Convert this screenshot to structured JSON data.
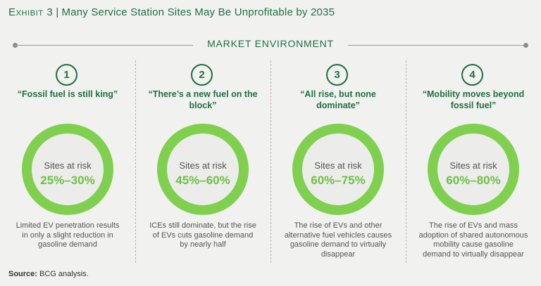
{
  "title": {
    "exhibit": "Exhibit 3",
    "separator": "|",
    "text": "Many Service Station Sites May Be Unprofitable by 2035"
  },
  "section_label": "MARKET ENVIRONMENT",
  "ring_color": "#7fd04f",
  "accent_color": "#1f6f43",
  "scenarios": [
    {
      "number": "1",
      "heading": "“Fossil fuel is still king”",
      "risk_label": "Sites at risk",
      "risk_value": "25%–30%",
      "description": "Limited EV penetration results in only a slight reduction in gasoline demand"
    },
    {
      "number": "2",
      "heading": "“There’s a new fuel on the block”",
      "risk_label": "Sites at risk",
      "risk_value": "45%–60%",
      "description": "ICEs still dominate, but the rise of EVs cuts gasoline demand by nearly half"
    },
    {
      "number": "3",
      "heading": "“All rise, but none dominate”",
      "risk_label": "Sites at risk",
      "risk_value": "60%–75%",
      "description": "The rise of EVs and other alternative fuel vehicles causes gasoline demand to virtually disappear"
    },
    {
      "number": "4",
      "heading": "“Mobility moves beyond fossil fuel”",
      "risk_label": "Sites at risk",
      "risk_value": "60%–80%",
      "description": "The rise of EVs and mass adoption of shared autonomous mobility cause gasoline demand to virtually disappear"
    }
  ],
  "source": {
    "label": "Source:",
    "text": "BCG analysis."
  }
}
